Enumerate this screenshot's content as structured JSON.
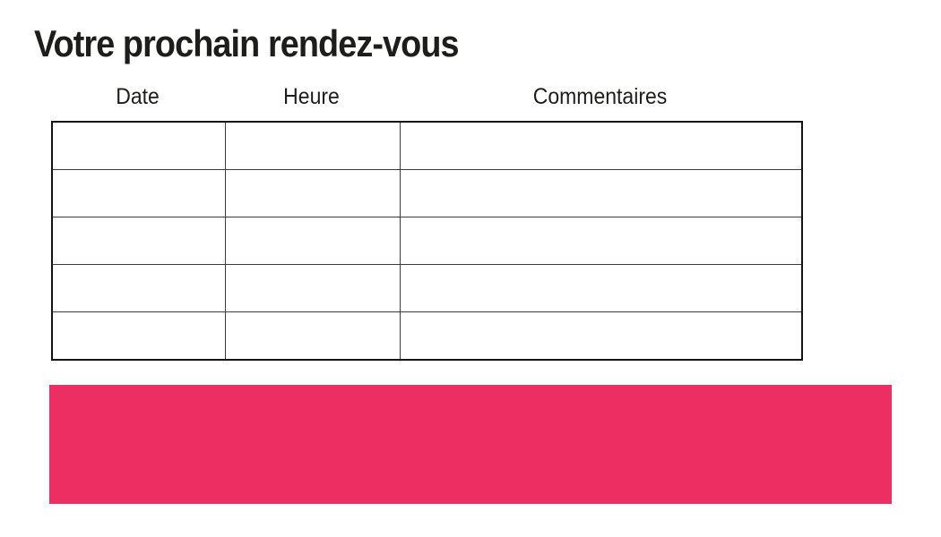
{
  "section": {
    "title": "Votre prochain rendez-vous"
  },
  "appointments_table": {
    "columns": [
      "Date",
      "Heure",
      "Commentaires"
    ],
    "row_count": 5,
    "rows": [
      [
        "",
        "",
        ""
      ],
      [
        "",
        "",
        ""
      ],
      [
        "",
        "",
        ""
      ],
      [
        "",
        "",
        ""
      ],
      [
        "",
        "",
        ""
      ]
    ]
  },
  "banner": {
    "color": "#ED2E63"
  },
  "colors": {
    "accent_pink": "#ED2E63",
    "text": "#1D1D1B",
    "table_border_outer": "#141414",
    "table_border_inner": "#3C3C3C",
    "background": "#FFFFFF"
  }
}
